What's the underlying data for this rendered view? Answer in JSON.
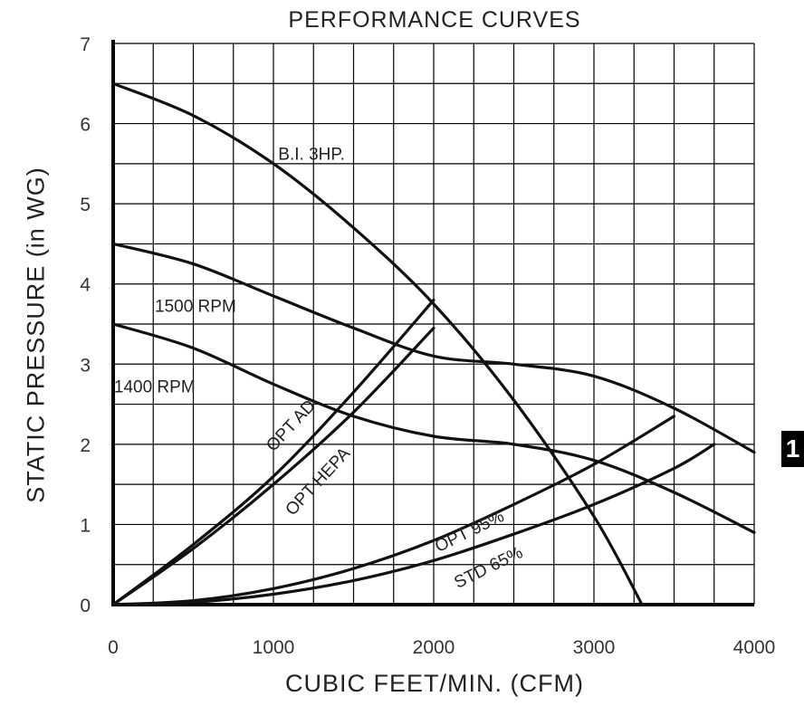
{
  "badge": "1",
  "chart_data": {
    "type": "line",
    "title": "PERFORMANCE CURVES",
    "xlabel": "CUBIC FEET/MIN. (CFM)",
    "ylabel": "STATIC PRESSURE (in WG)",
    "xlim": [
      0,
      4000
    ],
    "ylim": [
      0,
      7
    ],
    "xticks": [
      0,
      1000,
      2000,
      3000,
      4000
    ],
    "yticks": [
      0,
      1,
      2,
      3,
      4,
      5,
      6,
      7
    ],
    "grid": true,
    "series": [
      {
        "name": "B.I. 3HP.",
        "x": [
          0,
          500,
          1000,
          1500,
          2000,
          2500,
          3000,
          3300
        ],
        "y": [
          6.5,
          6.1,
          5.5,
          4.7,
          3.75,
          2.55,
          1.1,
          0
        ]
      },
      {
        "name": "1500 RPM",
        "x": [
          0,
          500,
          1000,
          1500,
          2000,
          2500,
          3000,
          3500,
          4000
        ],
        "y": [
          4.5,
          4.25,
          3.85,
          3.45,
          3.1,
          3.0,
          2.85,
          2.45,
          1.9
        ]
      },
      {
        "name": "1400 RPM",
        "x": [
          0,
          500,
          1000,
          1500,
          2000,
          2500,
          3000,
          3500,
          4000
        ],
        "y": [
          3.5,
          3.2,
          2.75,
          2.35,
          2.1,
          2.0,
          1.8,
          1.4,
          0.9
        ]
      },
      {
        "name": "OPT AD",
        "x": [
          0,
          500,
          1000,
          1500,
          2000
        ],
        "y": [
          0,
          0.75,
          1.6,
          2.65,
          3.8
        ]
      },
      {
        "name": "OPT HEPA",
        "x": [
          0,
          500,
          1000,
          1500,
          2000
        ],
        "y": [
          0,
          0.7,
          1.5,
          2.4,
          3.45
        ]
      },
      {
        "name": "OPT 95%",
        "x": [
          0,
          500,
          1000,
          1500,
          2000,
          2500,
          3000,
          3500
        ],
        "y": [
          0,
          0.05,
          0.2,
          0.45,
          0.8,
          1.25,
          1.75,
          2.35
        ]
      },
      {
        "name": "STD 65%",
        "x": [
          0,
          500,
          1000,
          1500,
          2000,
          2500,
          3000,
          3500,
          3750
        ],
        "y": [
          0,
          0.03,
          0.13,
          0.3,
          0.55,
          0.88,
          1.25,
          1.7,
          2.0
        ]
      }
    ]
  }
}
